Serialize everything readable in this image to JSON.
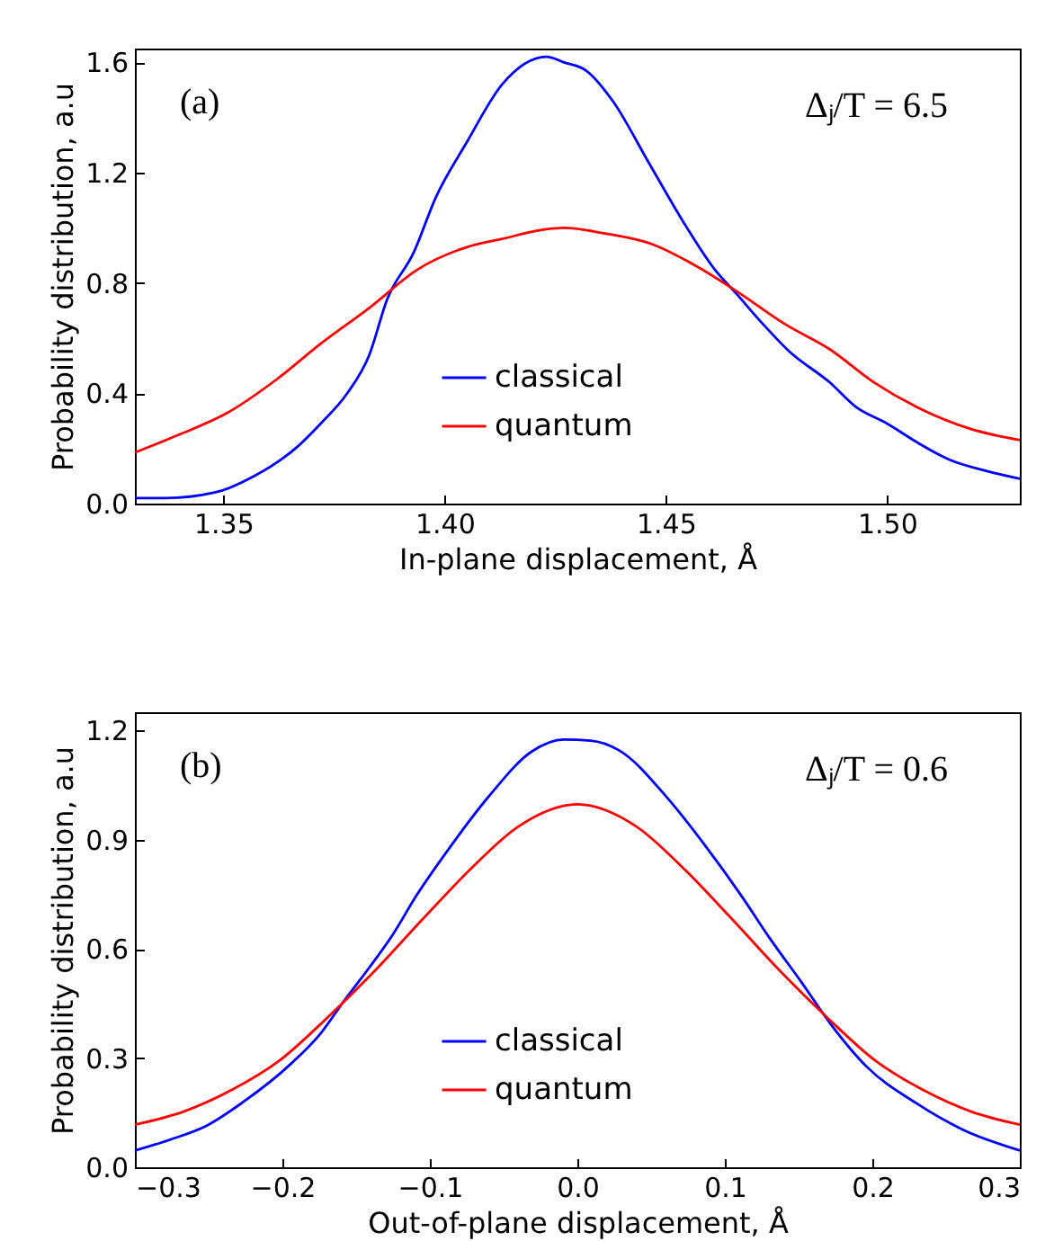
{
  "chart_data": [
    {
      "type": "line",
      "xlabel": "In-plane displacement, Å",
      "ylabel": "Probability distribution, a.u",
      "annotations": [
        "(a)",
        "Δⱼ/T = 6.5"
      ],
      "legend": "bottom",
      "grid": false,
      "marker": "none",
      "line_style": "solid",
      "xlim": [
        1.33,
        1.53
      ],
      "xticks": [
        1.35,
        {
          "value": 1.4,
          "label": "1.40"
        },
        1.45,
        {
          "value": 1.5,
          "label": "1.50"
        }
      ],
      "ylim": [
        0,
        1.65
      ],
      "yticks": [
        {
          "value": 0,
          "label": "0.0"
        },
        0.4,
        0.8,
        1.2,
        1.6
      ],
      "series": [
        {
          "name": "classical",
          "color": "#0000ff",
          "x": [
            1.33,
            1.337,
            1.348,
            1.357,
            1.367,
            1.372,
            1.378,
            1.383,
            1.387,
            1.393,
            1.398,
            1.405,
            1.413,
            1.423,
            1.427,
            1.432,
            1.438,
            1.446,
            1.454,
            1.461,
            1.466,
            1.472,
            1.478,
            1.487,
            1.493,
            1.5,
            1.507,
            1.514,
            1.522,
            1.53
          ],
          "values": [
            0.02,
            0.02,
            0.04,
            0.1,
            0.21,
            0.29,
            0.4,
            0.54,
            0.74,
            0.91,
            1.11,
            1.31,
            1.52,
            1.62,
            1.6,
            1.57,
            1.46,
            1.24,
            1.02,
            0.85,
            0.76,
            0.65,
            0.55,
            0.44,
            0.35,
            0.29,
            0.22,
            0.16,
            0.12,
            0.09
          ]
        },
        {
          "name": "quantum",
          "color": "#ff0000",
          "x": [
            1.33,
            1.34,
            1.351,
            1.362,
            1.372,
            1.383,
            1.394,
            1.405,
            1.413,
            1.423,
            1.427,
            1.436,
            1.447,
            1.457,
            1.466,
            1.477,
            1.487,
            1.497,
            1.508,
            1.519,
            1.53
          ],
          "values": [
            0.185,
            0.25,
            0.33,
            0.45,
            0.58,
            0.71,
            0.85,
            0.93,
            0.96,
            0.995,
            1.0,
            0.98,
            0.94,
            0.86,
            0.77,
            0.65,
            0.56,
            0.44,
            0.34,
            0.27,
            0.23
          ]
        }
      ]
    },
    {
      "type": "line",
      "xlabel": "Out-of-plane displacement, Å",
      "ylabel": "Probability distribution, a.u",
      "annotations": [
        "(b)",
        "Δⱼ/T = 0.6"
      ],
      "legend": "bottom",
      "grid": false,
      "marker": "none",
      "line_style": "solid",
      "xlim": [
        -0.3,
        0.3
      ],
      "xticks": [
        {
          "value": -0.3,
          "label": "−0.3"
        },
        {
          "value": -0.2,
          "label": "−0.2"
        },
        {
          "value": -0.1,
          "label": "−0.1"
        },
        {
          "value": 0,
          "label": "0.0"
        },
        0.1,
        0.2,
        0.3
      ],
      "ylim": [
        0,
        1.25
      ],
      "yticks": [
        {
          "value": 0,
          "label": "0.0"
        },
        0.3,
        0.6,
        0.9,
        1.2
      ],
      "series": [
        {
          "name": "classical",
          "color": "#0000ff",
          "x": [
            -0.3,
            -0.276,
            -0.251,
            -0.227,
            -0.194,
            -0.174,
            -0.158,
            -0.141,
            -0.125,
            -0.109,
            -0.088,
            -0.06,
            -0.031,
            -0.009,
            0.009,
            0.028,
            0.062,
            0.086,
            0.111,
            0.131,
            0.152,
            0.172,
            0.196,
            0.229,
            0.261,
            0.3
          ],
          "values": [
            0.046,
            0.076,
            0.115,
            0.178,
            0.285,
            0.368,
            0.458,
            0.549,
            0.64,
            0.747,
            0.87,
            1.019,
            1.142,
            1.175,
            1.172,
            1.146,
            1.01,
            0.887,
            0.747,
            0.626,
            0.508,
            0.392,
            0.277,
            0.178,
            0.104,
            0.046
          ]
        },
        {
          "name": "quantum",
          "color": "#ff0000",
          "x": [
            -0.3,
            -0.267,
            -0.235,
            -0.202,
            -0.17,
            -0.137,
            -0.105,
            -0.072,
            -0.04,
            0,
            0.04,
            0.072,
            0.105,
            0.137,
            0.17,
            0.202,
            0.235,
            0.267,
            0.3
          ],
          "values": [
            0.117,
            0.153,
            0.211,
            0.293,
            0.409,
            0.541,
            0.681,
            0.821,
            0.936,
            0.997,
            0.936,
            0.821,
            0.681,
            0.541,
            0.409,
            0.293,
            0.211,
            0.153,
            0.117
          ]
        }
      ]
    }
  ]
}
